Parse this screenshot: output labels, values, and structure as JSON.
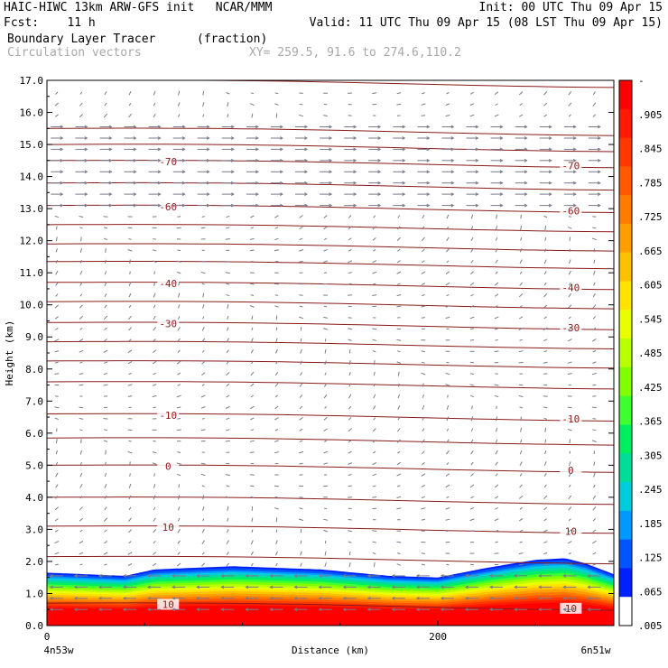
{
  "header": {
    "line1_left": "HAIC-HIWC 13km ARW-GFS init   NCAR/MMM",
    "line1_right": "Init: 00 UTC Thu 09 Apr 15",
    "line2_left": "Fcst:    11 h",
    "line2_right": "Valid: 11 UTC Thu 09 Apr 15 (08 LST Thu 09 Apr 15)",
    "line3_left": "Boundary Layer Tracer",
    "line3_mid": "(fraction)",
    "line4_left": "Circulation vectors",
    "line4_mid": "XY= 259.5, 91.6 to 274.6,110.2"
  },
  "colors": {
    "temperature_contours": "#8b1a1a",
    "vectors": "#7a7a8a"
  },
  "chart_data": {
    "type": "heatmap",
    "title": "Boundary Layer Tracer",
    "units": "(fraction)",
    "xlabel": "Distance (km)",
    "ylabel": "Height (km)",
    "xlim": [
      0,
      290
    ],
    "ylim": [
      0,
      17
    ],
    "x_ticks": [
      "0",
      "200"
    ],
    "x_left_label": "4n53w",
    "x_right_label": "6n51w",
    "y_ticks": [
      "0.0",
      "1.0",
      "2.0",
      "3.0",
      "4.0",
      "5.0",
      "6.0",
      "7.0",
      "8.0",
      "9.0",
      "10.0",
      "11.0",
      "12.0",
      "13.0",
      "14.0",
      "15.0",
      "16.0",
      "17.0"
    ],
    "colorbar": {
      "labels": [
        "-",
        ".905",
        ".845",
        ".785",
        ".725",
        ".665",
        ".605",
        ".545",
        ".485",
        ".425",
        ".365",
        ".305",
        ".245",
        ".185",
        ".125",
        ".065",
        ".005"
      ],
      "colors": [
        "#ff0000",
        "#ff1a00",
        "#ff3800",
        "#ff5a00",
        "#ff7c00",
        "#ff9e00",
        "#ffc000",
        "#ffe200",
        "#e8ff00",
        "#b8ff00",
        "#80ff00",
        "#40ff30",
        "#00ee60",
        "#00dd99",
        "#00ccdd",
        "#0099ff",
        "#0055ff",
        "#0020ff",
        "#ffffff"
      ]
    },
    "tracer_top_km": [
      [
        0,
        1.65
      ],
      [
        40,
        1.55
      ],
      [
        55,
        1.75
      ],
      [
        95,
        1.85
      ],
      [
        140,
        1.75
      ],
      [
        175,
        1.55
      ],
      [
        200,
        1.5
      ],
      [
        225,
        1.8
      ],
      [
        250,
        2.05
      ],
      [
        265,
        2.1
      ],
      [
        275,
        1.95
      ],
      [
        290,
        1.6
      ]
    ],
    "temperature_contours": [
      {
        "value": -70,
        "label": "-70",
        "height_km": 14.5
      },
      {
        "value": -60,
        "label": "-60",
        "height_km": 13.1
      },
      {
        "value": -40,
        "label": "-40",
        "height_km": 10.7
      },
      {
        "value": -30,
        "label": "-30",
        "height_km": 9.45
      },
      {
        "value": -10,
        "label": "-10",
        "height_km": 6.6
      },
      {
        "value": 0,
        "label": "0",
        "height_km": 5.0
      },
      {
        "value": 10,
        "label": "10",
        "height_km": 3.1
      },
      {
        "value": 10,
        "label": "10",
        "height_km": 0.7
      }
    ],
    "other_contour_heights_km": [
      17.0,
      15.5,
      15.0,
      13.8,
      12.5,
      11.9,
      11.35,
      10.1,
      8.85,
      8.25,
      7.6,
      5.85,
      4.0,
      2.15
    ],
    "grid": false,
    "legend": "colorbar-right"
  }
}
